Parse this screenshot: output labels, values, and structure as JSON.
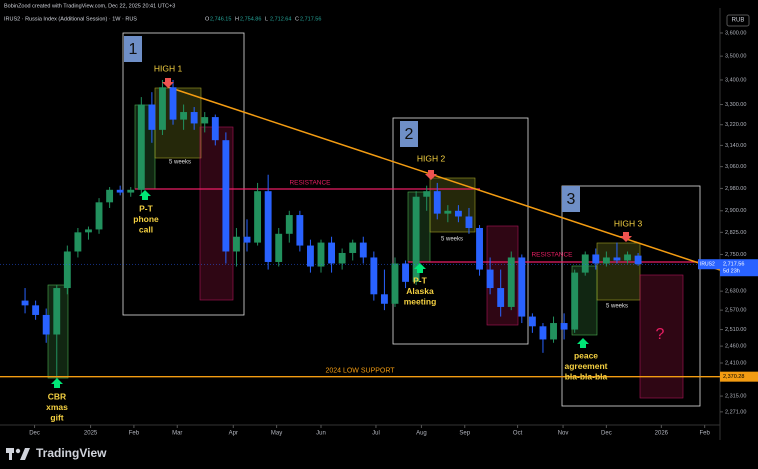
{
  "chart_data": {
    "type": "candlestick",
    "credit": "BobinZood created with TradingView.com, Dec 22, 2025 20:41 UTC+3",
    "title": "IRUS2 · Russia Index (Additional Session) · 1W · RUS",
    "ohlc_header": [
      {
        "label": "O",
        "value": "2,746.15"
      },
      {
        "label": "H",
        "value": "2,754.86"
      },
      {
        "label": "L",
        "value": "2,712.64"
      },
      {
        "label": "C",
        "value": "2,717.56"
      }
    ],
    "currency": "RUB",
    "symbol_tag": "IRUS2",
    "last_price_label": "2,717.56",
    "countdown": "5d 23h",
    "up_color": "#22915e",
    "down_color": "#2962ff",
    "log_scale": true,
    "ylim": [
      2235,
      3711
    ],
    "yticks": [
      {
        "value": 3600,
        "label": "3,600.00"
      },
      {
        "value": 3500,
        "label": "3,500.00"
      },
      {
        "value": 3400,
        "label": "3,400.00"
      },
      {
        "value": 3300,
        "label": "3,300.00"
      },
      {
        "value": 3220,
        "label": "3,220.00"
      },
      {
        "value": 3140,
        "label": "3,140.00"
      },
      {
        "value": 3060,
        "label": "3,060.00"
      },
      {
        "value": 2980,
        "label": "2,980.00"
      },
      {
        "value": 2900,
        "label": "2,900.00"
      },
      {
        "value": 2825,
        "label": "2,825.00"
      },
      {
        "value": 2750,
        "label": "2,750.00"
      },
      {
        "value": 2630,
        "label": "2,630.00"
      },
      {
        "value": 2570,
        "label": "2,570.00"
      },
      {
        "value": 2510,
        "label": "2,510.00"
      },
      {
        "value": 2460,
        "label": "2,460.00"
      },
      {
        "value": 2410,
        "label": "2,410.00"
      },
      {
        "value": 2315,
        "label": "2,315.00"
      },
      {
        "value": 2271,
        "label": "2,271.00"
      }
    ],
    "xlim": [
      -2.37,
      65.75
    ],
    "xticks": [
      {
        "value": 0.9,
        "label": "Dec"
      },
      {
        "value": 6.2,
        "label": "2025"
      },
      {
        "value": 10.3,
        "label": "Feb"
      },
      {
        "value": 14.4,
        "label": "Mar"
      },
      {
        "value": 19.7,
        "label": "Apr"
      },
      {
        "value": 23.8,
        "label": "May"
      },
      {
        "value": 28.0,
        "label": "Jun"
      },
      {
        "value": 33.2,
        "label": "Jul"
      },
      {
        "value": 37.5,
        "label": "Aug"
      },
      {
        "value": 41.6,
        "label": "Sep"
      },
      {
        "value": 46.6,
        "label": "Oct"
      },
      {
        "value": 50.9,
        "label": "Nov"
      },
      {
        "value": 55.0,
        "label": "Dec"
      },
      {
        "value": 60.2,
        "label": "2026"
      },
      {
        "value": 64.3,
        "label": "Feb"
      }
    ],
    "open": [
      2600,
      2585,
      2555,
      2495,
      2640,
      2760,
      2825,
      2835,
      2930,
      2975,
      2965,
      2975,
      3300,
      3200,
      3370,
      3240,
      3270,
      3225,
      3250,
      3160,
      2760,
      2810,
      2790,
      2970,
      2725,
      2820,
      2885,
      2780,
      2710,
      2790,
      2720,
      2755,
      2790,
      2740,
      2620,
      2590,
      2720,
      2660,
      2950,
      2970,
      2890,
      2900,
      2880,
      2840,
      2700,
      2640,
      2580,
      2740,
      2550,
      2520,
      2480,
      2530,
      2510,
      2690,
      2750,
      2720,
      2740,
      2730,
      2746.15
    ],
    "high": [
      2640,
      2600,
      2575,
      2650,
      2780,
      2840,
      2845,
      2945,
      2985,
      2990,
      2985,
      3330,
      3350,
      3400,
      3400,
      3300,
      3290,
      3270,
      3260,
      3190,
      2840,
      2870,
      3000,
      3030,
      2840,
      2900,
      2900,
      2800,
      2800,
      2810,
      2770,
      2800,
      2810,
      2760,
      2700,
      2740,
      2730,
      2970,
      2990,
      3000,
      2920,
      2920,
      2910,
      2850,
      2740,
      2700,
      2760,
      2750,
      2560,
      2530,
      2550,
      2560,
      2700,
      2760,
      2770,
      2760,
      2790,
      2760,
      2754.86
    ],
    "low": [
      2560,
      2540,
      2470,
      2365,
      2620,
      2740,
      2800,
      2820,
      2910,
      2955,
      2950,
      2960,
      3150,
      3180,
      3220,
      3200,
      3200,
      3190,
      3140,
      2720,
      2710,
      2760,
      2780,
      2700,
      2710,
      2790,
      2760,
      2690,
      2690,
      2690,
      2700,
      2730,
      2720,
      2600,
      2570,
      2580,
      2640,
      2650,
      2900,
      2870,
      2860,
      2860,
      2820,
      2680,
      2620,
      2550,
      2570,
      2530,
      2500,
      2440,
      2470,
      2480,
      2500,
      2680,
      2700,
      2710,
      2720,
      2720,
      2712.64
    ],
    "close": [
      2585,
      2555,
      2495,
      2640,
      2760,
      2825,
      2835,
      2930,
      2975,
      2965,
      2975,
      3300,
      3200,
      3370,
      3240,
      3270,
      3225,
      3250,
      3160,
      2760,
      2810,
      2790,
      2970,
      2725,
      2820,
      2885,
      2780,
      2710,
      2790,
      2720,
      2755,
      2790,
      2740,
      2620,
      2590,
      2720,
      2660,
      2950,
      2970,
      2890,
      2900,
      2880,
      2840,
      2700,
      2640,
      2580,
      2740,
      2550,
      2520,
      2480,
      2530,
      2510,
      2690,
      2750,
      2720,
      2740,
      2730,
      2750,
      2717.56
    ],
    "support": {
      "label": "2024 LOW SUPPORT",
      "value": 2370.28,
      "value_label": "2,370.28"
    },
    "annotations": [
      {
        "text": "1"
      },
      {
        "text": "2"
      },
      {
        "text": "3"
      },
      {
        "text": "HIGH 1"
      },
      {
        "text": "HIGH 2"
      },
      {
        "text": "HIGH 3"
      },
      {
        "text": "5 weeks"
      },
      {
        "text": "5 weeks"
      },
      {
        "text": "5 weeks"
      },
      {
        "lines": [
          "P-T",
          "phone",
          "call"
        ]
      },
      {
        "lines": [
          "P-T",
          "Alaska",
          "meeting"
        ]
      },
      {
        "lines": [
          "peace",
          "agreement",
          "bla-bla-bla"
        ]
      },
      {
        "lines": [
          "CBR",
          "xmas",
          "gift"
        ]
      },
      {
        "text": "RESISTANCE"
      },
      {
        "text": "RESISTANCE"
      },
      {
        "text": "?"
      }
    ],
    "brand": "TradingView"
  }
}
